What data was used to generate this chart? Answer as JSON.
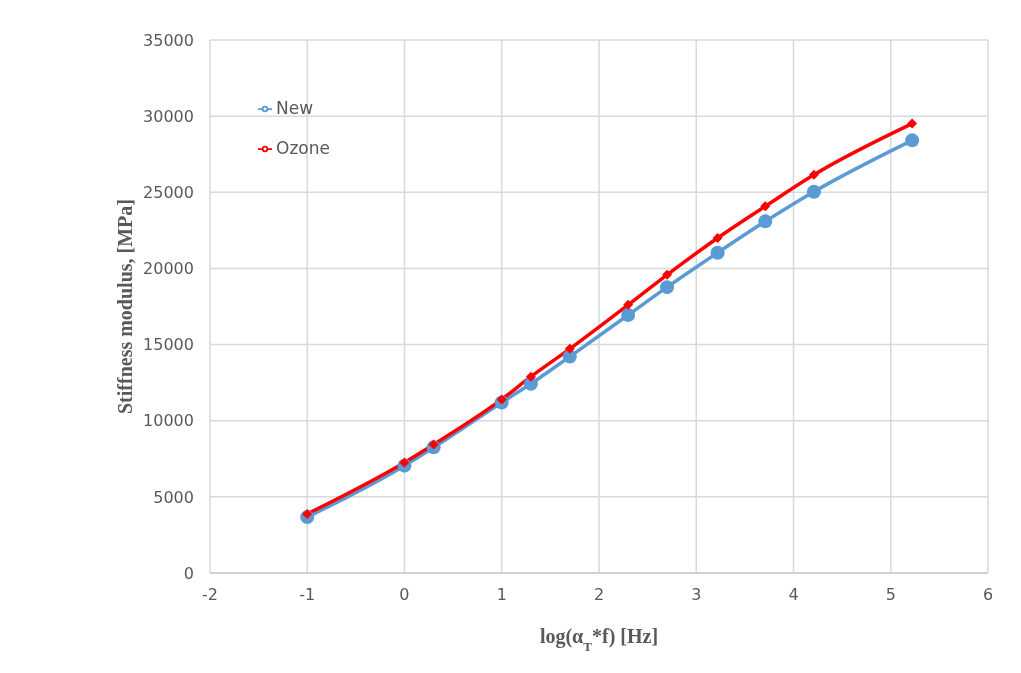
{
  "chart_data": {
    "type": "line",
    "xlabel": "log(α$_{T}$*f) [Hz]",
    "ylabel": "Stiffness modulus, [MPa]",
    "x": [
      -1,
      0,
      0.3,
      1,
      1.3,
      1.7,
      2.3,
      2.7,
      3.22,
      3.71,
      4.21,
      5.22
    ],
    "series": [
      {
        "name": "New",
        "color": "#5b9bd5",
        "marker": "circle",
        "values": [
          3670,
          7050,
          8250,
          11200,
          12430,
          14210,
          16940,
          18770,
          21030,
          23090,
          25040,
          28410
        ]
      },
      {
        "name": "Ozone",
        "color": "#ff0000",
        "marker": "diamond",
        "values": [
          3880,
          7260,
          8440,
          11400,
          12890,
          14720,
          17610,
          19580,
          22000,
          24080,
          26150,
          29510
        ]
      }
    ],
    "xlim": [
      -2,
      6
    ],
    "xticks": [
      -2,
      -1,
      0,
      1,
      2,
      3,
      4,
      5,
      6
    ],
    "ylim": [
      0,
      35000
    ],
    "yticks": [
      0,
      5000,
      10000,
      15000,
      20000,
      25000,
      30000,
      35000
    ],
    "grid": true,
    "legend": "top left",
    "line_style": "solid"
  }
}
